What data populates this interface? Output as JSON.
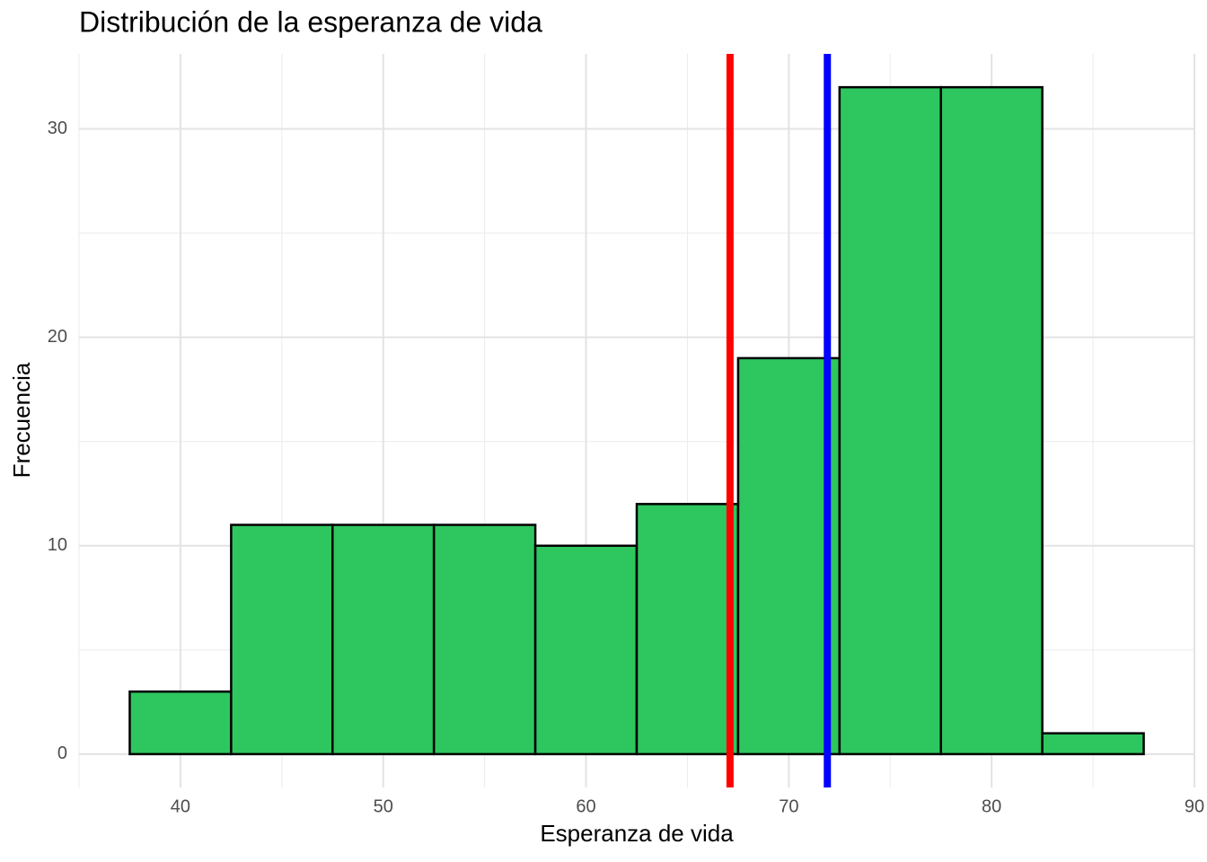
{
  "chart_data": {
    "type": "histogram",
    "title": "Distribución de la esperanza de vida",
    "x_label": "Esperanza de vida",
    "y_label": "Frecuencia",
    "bins": [
      37.5,
      42.5,
      47.5,
      52.5,
      57.5,
      62.5,
      67.5,
      72.5,
      77.5,
      82.5,
      87.5
    ],
    "values": [
      3,
      11,
      11,
      11,
      10,
      12,
      19,
      32,
      32,
      1
    ],
    "color": "#2ec65f",
    "edge_color": "#000000",
    "vlines": [
      {
        "value": 67.1,
        "color": "#ff0000"
      },
      {
        "value": 71.9,
        "color": "#0000ff"
      }
    ],
    "xlim": [
      35,
      90
    ],
    "xticks": [
      40,
      50,
      60,
      70,
      80,
      90
    ],
    "x_minor_ticks": [
      35,
      45,
      55,
      65,
      75,
      85
    ],
    "ylim": [
      -1.6,
      33.6
    ],
    "yticks": [
      0,
      10,
      20,
      30
    ],
    "y_minor_ticks": [
      5,
      15,
      25
    ],
    "grid": true
  }
}
